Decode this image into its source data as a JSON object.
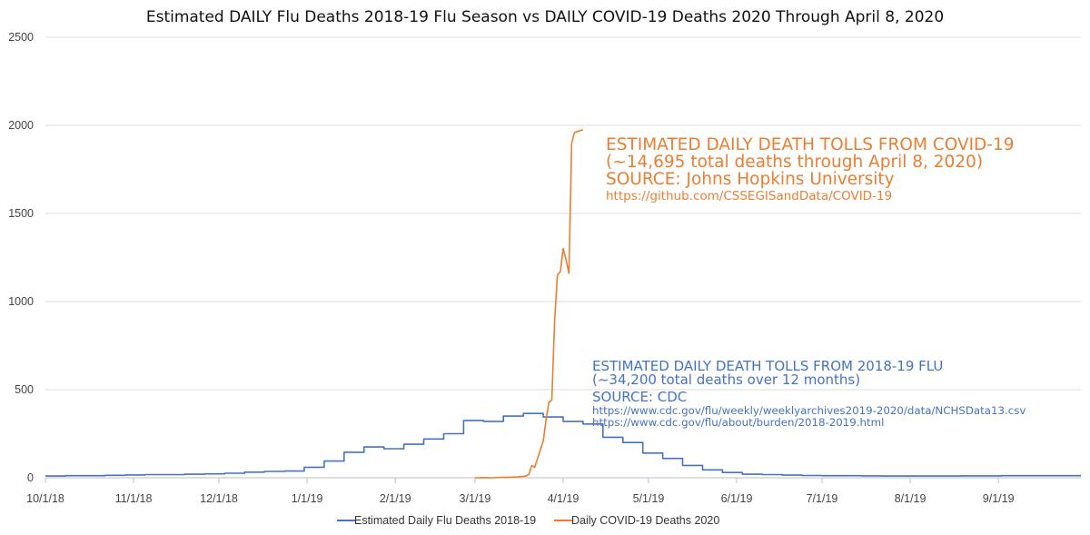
{
  "chart_data": {
    "type": "line",
    "title": "Estimated DAILY Flu Deaths  2018-19 Flu Season vs DAILY COVID-19 Deaths 2020 Through April 8, 2020",
    "xlabel": "",
    "ylabel": "",
    "x_unit": "days since 10/1/2018",
    "xlim": [
      0,
      364
    ],
    "ylim": [
      0,
      2500
    ],
    "yticks": [
      0,
      500,
      1000,
      1500,
      2000,
      2500
    ],
    "ytick_labels": [
      "0",
      "500",
      "1000",
      "1500",
      "2000",
      "2500"
    ],
    "xticks": [
      0,
      31,
      61,
      92,
      123,
      151,
      182,
      212,
      243,
      273,
      304,
      335
    ],
    "xtick_labels": [
      "10/1/18",
      "11/1/18",
      "12/1/18",
      "1/1/19",
      "2/1/19",
      "3/1/19",
      "4/1/19",
      "5/1/19",
      "6/1/19",
      "7/1/19",
      "8/1/19",
      "9/1/19"
    ],
    "grid": true,
    "legend_position": "bottom-center",
    "series": [
      {
        "name": "Estimated Daily Flu Deaths 2018-19",
        "color": "#4472C4",
        "step": true,
        "x": [
          0,
          7,
          14,
          21,
          28,
          35,
          42,
          49,
          56,
          63,
          70,
          77,
          84,
          91,
          98,
          105,
          112,
          119,
          126,
          133,
          140,
          147,
          154,
          161,
          168,
          175,
          182,
          189,
          196,
          203,
          210,
          217,
          224,
          231,
          238,
          245,
          252,
          259,
          266,
          273,
          280,
          287,
          294,
          301,
          308,
          315,
          322,
          329,
          336,
          343,
          350,
          357
        ],
        "values": [
          10,
          12,
          12,
          14,
          16,
          18,
          18,
          20,
          22,
          26,
          32,
          36,
          38,
          60,
          95,
          145,
          175,
          165,
          190,
          220,
          250,
          325,
          320,
          350,
          365,
          345,
          320,
          305,
          230,
          200,
          140,
          110,
          70,
          45,
          30,
          20,
          18,
          15,
          13,
          12,
          12,
          11,
          10,
          10,
          10,
          10,
          11,
          11,
          12,
          12,
          12,
          12
        ],
        "x_end": 364
      },
      {
        "name": "Daily COVID-19 Deaths 2020",
        "color": "#ED7D31",
        "step": false,
        "x": [
          151,
          154,
          157,
          160,
          163,
          166,
          169,
          170,
          171,
          172,
          173,
          174,
          175,
          176,
          177,
          178,
          179,
          180,
          181,
          182,
          183,
          184,
          185,
          186,
          187,
          188,
          189
        ],
        "values": [
          0,
          1,
          0,
          2,
          3,
          5,
          10,
          20,
          70,
          60,
          110,
          160,
          210,
          330,
          430,
          440,
          890,
          1150,
          1170,
          1300,
          1240,
          1160,
          1900,
          1960,
          1965,
          1970,
          1975
        ]
      }
    ],
    "annotations": [
      {
        "series": "Daily COVID-19 Deaths 2020",
        "lines": [
          "ESTIMATED DAILY DEATH TOLLS FROM COVID-19",
          "(~14,695 total deaths through April 8, 2020)",
          "SOURCE: Johns Hopkins University",
          "https://github.com/CSSEGISandData/COVID-19"
        ]
      },
      {
        "series": "Estimated Daily Flu Deaths 2018-19",
        "lines": [
          "ESTIMATED DAILY DEATH TOLLS FROM 2018-19 FLU",
          "(~34,200 total deaths over 12 months)",
          "SOURCE: CDC",
          "https://www.cdc.gov/flu/weekly/weeklyarchives2019-2020/data/NCHSData13.csv",
          "https://www.cdc.gov/flu/about/burden/2018-2019.html"
        ]
      }
    ]
  }
}
